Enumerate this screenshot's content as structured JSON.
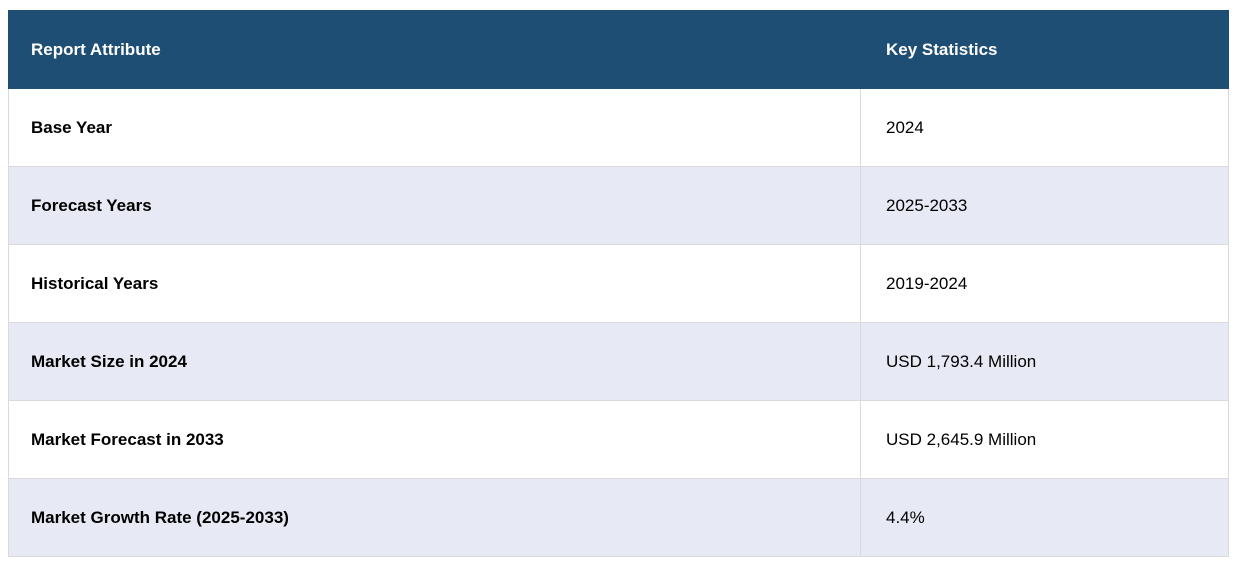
{
  "chart_data": {
    "type": "table",
    "columns": [
      "Report Attribute",
      "Key Statistics"
    ],
    "rows": [
      [
        "Base Year",
        "2024"
      ],
      [
        "Forecast Years",
        "2025-2033"
      ],
      [
        "Historical Years",
        "2019-2024"
      ],
      [
        "Market Size in 2024",
        "USD 1,793.4 Million"
      ],
      [
        "Market Forecast in 2033",
        "USD 2,645.9 Million"
      ],
      [
        "Market Growth Rate (2025-2033)",
        "4.4%"
      ]
    ]
  },
  "colors": {
    "header_bg": "#1f4e74",
    "header_text": "#ffffff",
    "row_bg": "#ffffff",
    "row_alt_bg": "#e7e9f4",
    "border": "#d9d9de",
    "header_divider": "#e9ebf0",
    "body_text": "#000000"
  }
}
